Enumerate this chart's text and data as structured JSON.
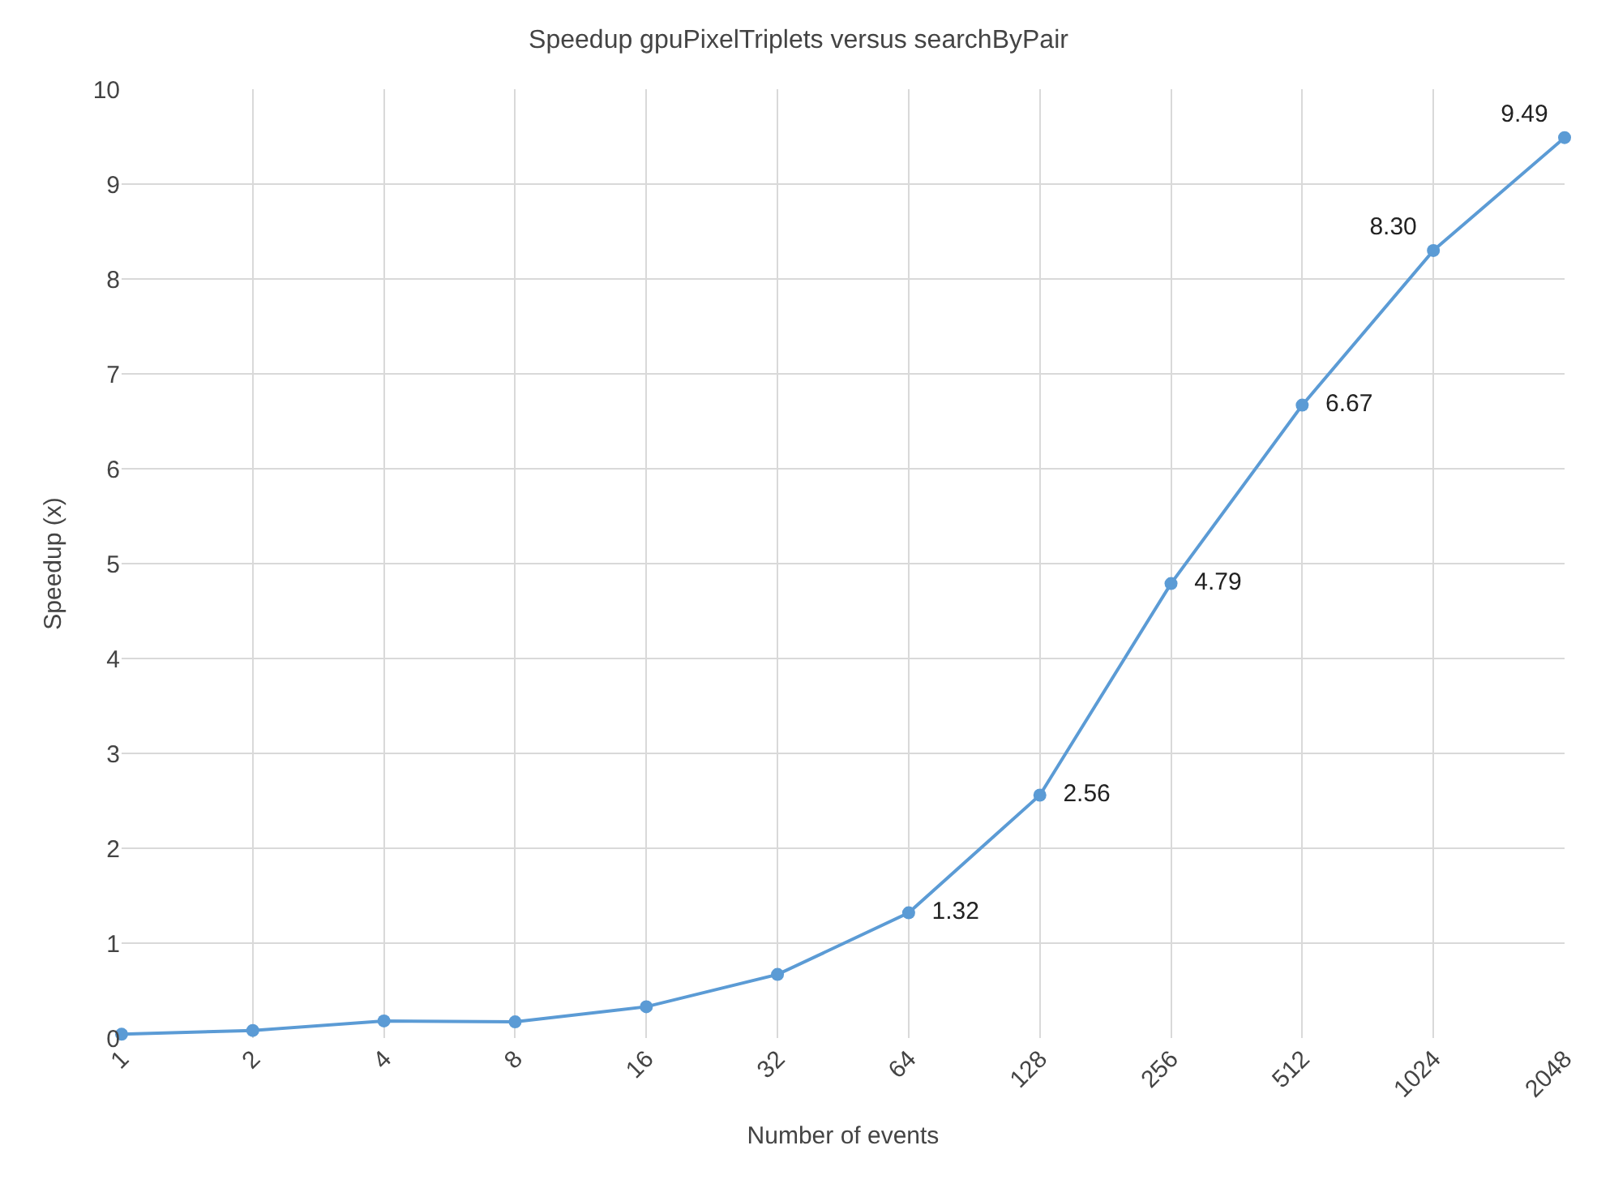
{
  "chart_data": {
    "type": "line",
    "title": "Speedup gpuPixelTriplets versus searchByPair",
    "xlabel": "Number of events",
    "ylabel": "Speedup (x)",
    "categories": [
      "1",
      "2",
      "4",
      "8",
      "16",
      "32",
      "64",
      "128",
      "256",
      "512",
      "1024",
      "2048"
    ],
    "series": [
      {
        "color": "#5b9bd5",
        "values": [
          0.04,
          0.08,
          0.18,
          0.17,
          0.33,
          0.67,
          1.32,
          2.56,
          4.79,
          6.67,
          8.3,
          9.49
        ],
        "value_labels": [
          null,
          null,
          null,
          null,
          null,
          null,
          "1.32",
          "2.56",
          "4.79",
          "6.67",
          "8.30",
          "9.49"
        ]
      }
    ],
    "ylim": [
      0,
      10
    ],
    "yticks": [
      0,
      1,
      2,
      3,
      4,
      5,
      6,
      7,
      8,
      9,
      10
    ],
    "grid": true,
    "marker": "circle",
    "line_style": "solid",
    "legend": false
  }
}
